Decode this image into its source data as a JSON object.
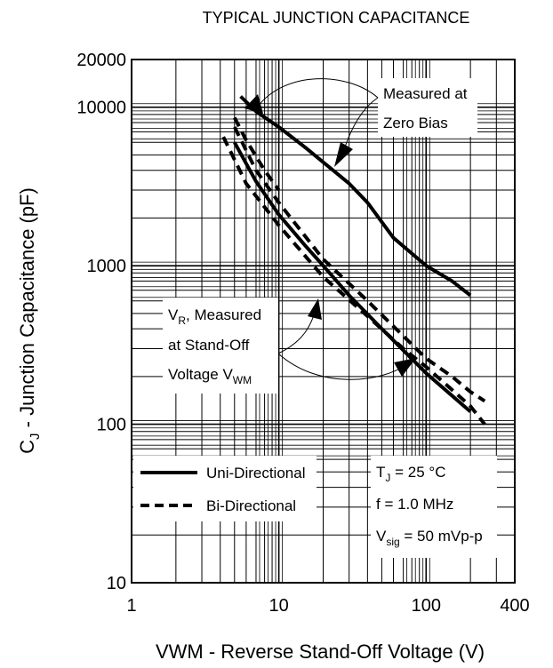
{
  "chart_data": {
    "type": "line",
    "title": "TYPICAL JUNCTION CAPACITANCE",
    "xlabel": "VWM - Reverse Stand-Off Voltage (V)",
    "ylabel": "CJ - Junction Capacitance (pF)",
    "xscale": "log",
    "yscale": "log",
    "xlim": [
      1,
      400
    ],
    "ylim": [
      10,
      20000
    ],
    "x_ticks": [
      {
        "value": 1,
        "label": "1"
      },
      {
        "value": 10,
        "label": "10"
      },
      {
        "value": 100,
        "label": "100"
      },
      {
        "value": 400,
        "label": "400"
      }
    ],
    "y_ticks": [
      {
        "value": 10,
        "label": "10"
      },
      {
        "value": 100,
        "label": "100"
      },
      {
        "value": 1000,
        "label": "1000"
      },
      {
        "value": 10000,
        "label": "10000"
      },
      {
        "value": 20000,
        "label": "20000"
      }
    ],
    "grid": true,
    "legend": {
      "position": "bottom-left",
      "entries": [
        {
          "label": "Uni-Directional",
          "style": "solid"
        },
        {
          "label": "Bi-Directional",
          "style": "dashed"
        }
      ]
    },
    "conditions": {
      "tj_main": "T",
      "tj_sub": "J",
      "tj_rest": " = 25 °C",
      "freq": "f = 1.0 MHz",
      "vsig_main": "V",
      "vsig_sub": "sig",
      "vsig_rest": " = 50 mVp-p"
    },
    "annotations": {
      "zero_bias_line1": "Measured at",
      "zero_bias_line2": "Zero Bias",
      "vr_line1_main": "V",
      "vr_line1_sub": "R",
      "vr_line1_rest": ", Measured",
      "vr_line2": "at Stand-Off",
      "vr_line3_main": "Voltage V",
      "vr_line3_sub": "WM"
    },
    "series": [
      {
        "style": "solid",
        "group": "zero-bias",
        "x": [
          5.5,
          7,
          10,
          15,
          20,
          30,
          40,
          60,
          100,
          150,
          200
        ],
        "y": [
          11700,
          9400,
          7500,
          5600,
          4500,
          3300,
          2500,
          1500,
          1000,
          800,
          650
        ]
      },
      {
        "style": "dashed",
        "group": "zero-bias",
        "x": [
          5,
          6,
          7,
          8,
          10
        ],
        "y": [
          8600,
          6200,
          4900,
          4000,
          3000
        ]
      },
      {
        "style": "solid",
        "group": "stand-off",
        "x": [
          5,
          7,
          10,
          15,
          20,
          30,
          50,
          100,
          200
        ],
        "y": [
          6000,
          3400,
          2100,
          1350,
          1000,
          650,
          400,
          210,
          120
        ]
      },
      {
        "style": "dashed",
        "group": "stand-off",
        "x": [
          4.2,
          6,
          10,
          20,
          40,
          70,
          100,
          200,
          250
        ],
        "y": [
          6500,
          3300,
          1800,
          850,
          480,
          300,
          230,
          130,
          100
        ]
      },
      {
        "style": "dashed",
        "group": "stand-off",
        "x": [
          5,
          7,
          10,
          20,
          40,
          100,
          150,
          200,
          250
        ],
        "y": [
          7500,
          4000,
          2500,
          1100,
          600,
          260,
          200,
          160,
          140
        ]
      }
    ]
  }
}
